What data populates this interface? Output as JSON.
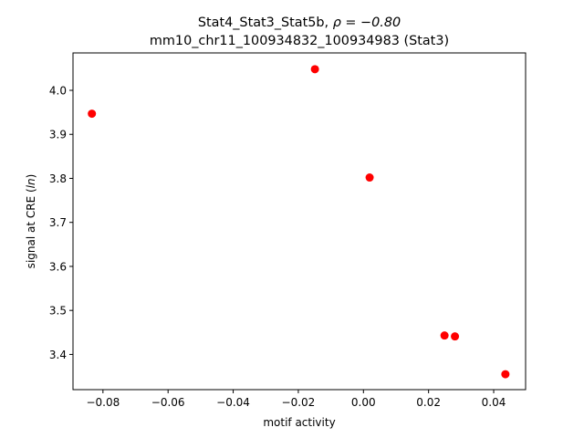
{
  "chart_data": {
    "type": "scatter",
    "title_line1": "Stat4_Stat3_Stat5b, ",
    "title_rho": "ρ = −0.80",
    "title_line2": "mm10_chr11_100934832_100934983 (Stat3)",
    "xlabel": "motif activity",
    "ylabel_prefix": "signal at CRE (",
    "ylabel_italic": "ln",
    "ylabel_suffix": ")",
    "xlim": [
      -0.0892,
      0.0498
    ],
    "ylim": [
      3.32,
      4.085
    ],
    "x_ticks": [
      -0.08,
      -0.06,
      -0.04,
      -0.02,
      0.0,
      0.02,
      0.04
    ],
    "x_tick_labels": [
      "−0.08",
      "−0.06",
      "−0.04",
      "−0.02",
      "0.00",
      "0.02",
      "0.04"
    ],
    "y_ticks": [
      3.4,
      3.5,
      3.6,
      3.7,
      3.8,
      3.9,
      4.0
    ],
    "y_tick_labels": [
      "3.4",
      "3.5",
      "3.6",
      "3.7",
      "3.8",
      "3.9",
      "4.0"
    ],
    "marker_color": "#ff0000",
    "grid": false,
    "points": [
      {
        "x": -0.0834,
        "y": 3.947
      },
      {
        "x": -0.0149,
        "y": 4.048
      },
      {
        "x": 0.0019,
        "y": 3.802
      },
      {
        "x": 0.0249,
        "y": 3.443
      },
      {
        "x": 0.0281,
        "y": 3.441
      },
      {
        "x": 0.0436,
        "y": 3.355
      }
    ]
  }
}
